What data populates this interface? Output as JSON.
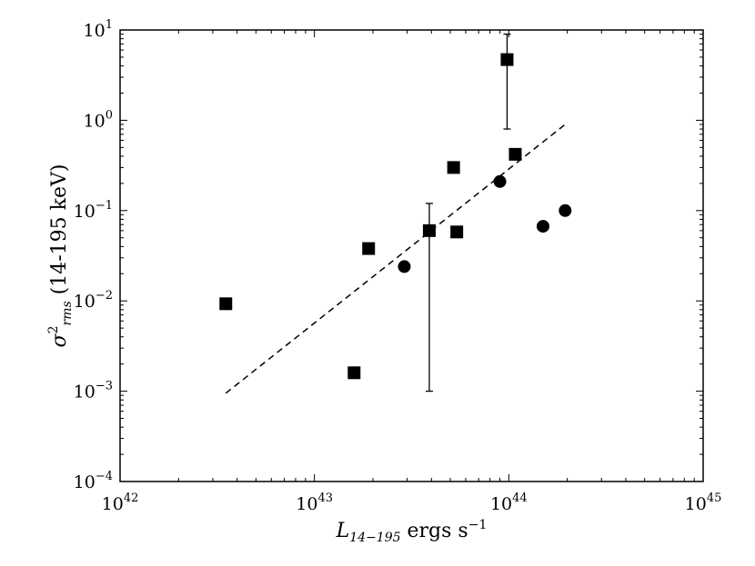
{
  "chart_data": {
    "type": "scatter",
    "xscale": "log",
    "yscale": "log",
    "xlim": [
      1e+42,
      1e+45
    ],
    "ylim": [
      0.0001,
      10
    ],
    "grid": false,
    "legend": "none",
    "xlabel": {
      "main": "L",
      "sub": "14−195",
      "rest": " ergs s",
      "sup": "−1"
    },
    "ylabel": {
      "main": "σ",
      "sup": "2",
      "sub": "rms",
      "rest": " (14-195 keV)"
    },
    "xticks": [
      {
        "value": 1e+42,
        "base": "10",
        "exp": "42"
      },
      {
        "value": 1e+43,
        "base": "10",
        "exp": "43"
      },
      {
        "value": 1e+44,
        "base": "10",
        "exp": "44"
      },
      {
        "value": 1e+45,
        "base": "10",
        "exp": "45"
      }
    ],
    "yticks": [
      {
        "value": 0.0001,
        "base": "10",
        "exp": "−4"
      },
      {
        "value": 0.001,
        "base": "10",
        "exp": "−3"
      },
      {
        "value": 0.01,
        "base": "10",
        "exp": "−2"
      },
      {
        "value": 0.1,
        "base": "10",
        "exp": "−1"
      },
      {
        "value": 1,
        "base": "10",
        "exp": "0"
      },
      {
        "value": 10,
        "base": "10",
        "exp": "1"
      }
    ],
    "series": [
      {
        "marker": "square",
        "color": "#000000",
        "points": [
          {
            "x": 3.5e+42,
            "y": 0.0093
          },
          {
            "x": 1.6e+43,
            "y": 0.0016
          },
          {
            "x": 1.9e+43,
            "y": 0.038
          },
          {
            "x": 3.9e+43,
            "y": 0.06,
            "yerr_low": 0.001,
            "yerr_high": 0.12
          },
          {
            "x": 5.2e+43,
            "y": 0.3
          },
          {
            "x": 5.4e+43,
            "y": 0.058
          },
          {
            "x": 9.8e+43,
            "y": 4.7,
            "yerr_low": 0.8,
            "yerr_high": 9.0
          },
          {
            "x": 1.08e+44,
            "y": 0.42
          }
        ]
      },
      {
        "marker": "circle",
        "color": "#000000",
        "points": [
          {
            "x": 2.9e+43,
            "y": 0.024
          },
          {
            "x": 9e+43,
            "y": 0.21
          },
          {
            "x": 1.5e+44,
            "y": 0.067
          },
          {
            "x": 1.95e+44,
            "y": 0.1
          }
        ]
      }
    ],
    "fit_line": {
      "style": "dashed",
      "color": "#000000",
      "x": [
        3.5e+42,
        1.95e+44
      ],
      "y": [
        0.00095,
        0.9
      ]
    }
  }
}
